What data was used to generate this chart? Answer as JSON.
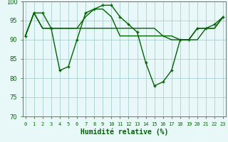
{
  "series": [
    {
      "x": [
        0,
        1,
        2,
        3,
        4,
        5,
        6,
        7,
        8,
        9,
        10,
        11,
        12,
        13,
        14,
        15,
        16,
        17,
        18,
        19,
        20,
        21,
        22,
        23
      ],
      "y": [
        91,
        97,
        97,
        93,
        82,
        83,
        90,
        97,
        98,
        99,
        99,
        96,
        94,
        92,
        84,
        78,
        79,
        82,
        90,
        90,
        93,
        93,
        94,
        96
      ],
      "color": "#006400",
      "linewidth": 1.0,
      "marker": "+"
    },
    {
      "x": [
        0,
        1,
        2,
        3,
        4,
        5,
        6,
        7,
        8,
        9,
        10,
        11,
        12,
        13,
        14,
        15,
        16,
        17,
        18,
        19,
        20,
        21,
        22,
        23
      ],
      "y": [
        91,
        97,
        93,
        93,
        93,
        93,
        93,
        96,
        98,
        98,
        96,
        91,
        91,
        91,
        91,
        91,
        91,
        90,
        90,
        90,
        93,
        93,
        93,
        96
      ],
      "color": "#006400",
      "linewidth": 1.0,
      "marker": null
    },
    {
      "x": [
        0,
        1,
        2,
        3,
        4,
        5,
        6,
        7,
        8,
        9,
        10,
        11,
        12,
        13,
        14,
        15,
        16,
        17,
        18,
        19,
        20,
        21,
        22,
        23
      ],
      "y": [
        91,
        97,
        93,
        93,
        93,
        93,
        93,
        93,
        93,
        93,
        93,
        93,
        93,
        93,
        93,
        93,
        91,
        91,
        90,
        90,
        90,
        93,
        93,
        96
      ],
      "color": "#006400",
      "linewidth": 1.0,
      "marker": null
    }
  ],
  "xlim": [
    -0.3,
    23.3
  ],
  "ylim": [
    70,
    100
  ],
  "yticks": [
    70,
    75,
    80,
    85,
    90,
    95,
    100
  ],
  "xtick_labels": [
    "0",
    "1",
    "2",
    "3",
    "4",
    "5",
    "6",
    "7",
    "8",
    "9",
    "10",
    "11",
    "12",
    "13",
    "14",
    "15",
    "16",
    "17",
    "18",
    "19",
    "20",
    "21",
    "22",
    "23"
  ],
  "xlabel": "Humidité relative (%)",
  "xlabel_color": "#006400",
  "xlabel_fontsize": 7,
  "background_color": "#e8f8f8",
  "grid_color": "#aacfcf",
  "tick_color": "#006400",
  "ytick_fontsize": 6,
  "xtick_fontsize": 5,
  "spine_color": "#707070",
  "marker_size": 3.5,
  "marker_lw": 1.0
}
